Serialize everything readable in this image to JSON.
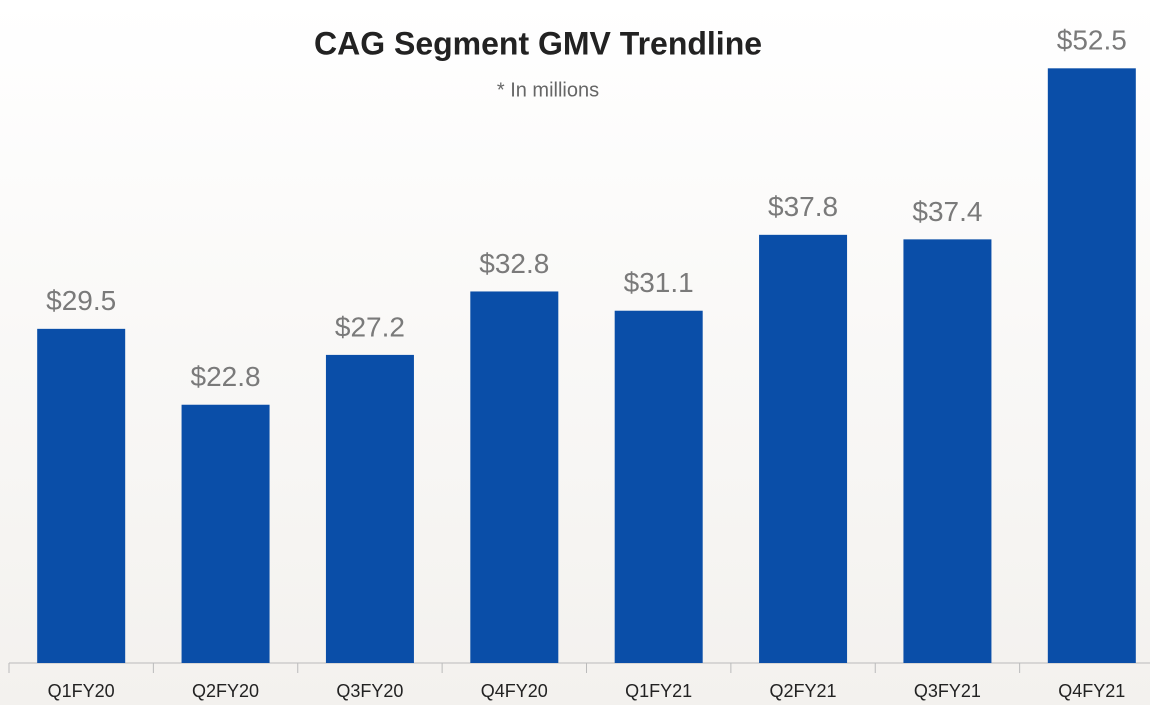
{
  "chart_data": {
    "type": "bar",
    "title": "CAG Segment GMV Trendline",
    "subtitle": "* In millions",
    "categories": [
      "Q1FY20",
      "Q2FY20",
      "Q3FY20",
      "Q4FY20",
      "Q1FY21",
      "Q2FY21",
      "Q3FY21",
      "Q4FY21"
    ],
    "values": [
      29.5,
      22.8,
      27.2,
      32.8,
      31.1,
      37.8,
      37.4,
      52.5
    ],
    "value_labels": [
      "$29.5",
      "$22.8",
      "$27.2",
      "$32.8",
      "$31.1",
      "$37.8",
      "$37.4",
      "$52.5"
    ],
    "color": "#0a4ea8",
    "ylim": [
      0,
      55
    ]
  }
}
